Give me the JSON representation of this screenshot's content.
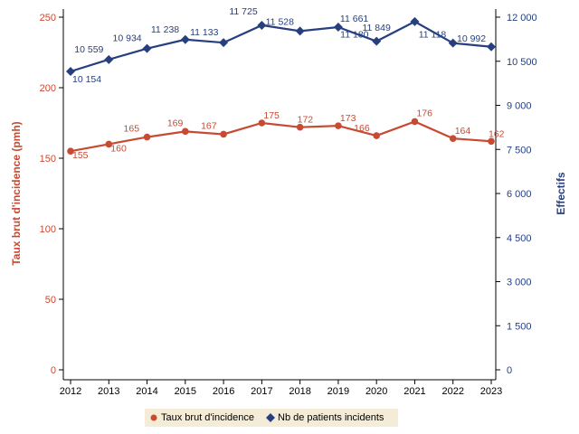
{
  "chart_data": {
    "type": "line",
    "x": [
      2012,
      2013,
      2014,
      2015,
      2016,
      2017,
      2018,
      2019,
      2020,
      2021,
      2022,
      2023
    ],
    "series": [
      {
        "name": "Taux brut d'incidence",
        "axis": "left",
        "color": "#c84a32",
        "marker": "circle",
        "values": [
          155,
          160,
          165,
          169,
          167,
          175,
          172,
          173,
          166,
          176,
          164,
          162
        ],
        "labels": [
          "155",
          "160",
          "165",
          "169",
          "167",
          "175",
          "172",
          "173",
          "166",
          "176",
          "164",
          "162"
        ]
      },
      {
        "name": "Nb de patients incidents",
        "axis": "right",
        "color": "#253f7f",
        "marker": "diamond",
        "values": [
          10154,
          10559,
          10934,
          11238,
          11133,
          11725,
          11528,
          11661,
          11180,
          11849,
          11118,
          10992
        ],
        "labels": [
          "10 154",
          "10 559",
          "10 934",
          "11 238",
          "11 133",
          "11 725",
          "11 528",
          "11 661",
          "11 180",
          "11 849",
          "11 118",
          "10 992"
        ]
      }
    ],
    "ylabel_left": "Taux brut d'incidence (pmh)",
    "ylabel_right": "Effectifs",
    "ylim_left": [
      0,
      250
    ],
    "ylim_right": [
      0,
      12000
    ],
    "yticks_left": [
      "0",
      "50",
      "100",
      "150",
      "200",
      "250"
    ],
    "yticks_right": [
      "0",
      "1 500",
      "3 000",
      "4 500",
      "6 000",
      "7 500",
      "9 000",
      "10 500",
      "12 000"
    ],
    "xticks": [
      "2012",
      "2013",
      "2014",
      "2015",
      "2016",
      "2017",
      "2018",
      "2019",
      "2020",
      "2021",
      "2022",
      "2023"
    ],
    "grid": false,
    "legend_placement": "bottom"
  }
}
